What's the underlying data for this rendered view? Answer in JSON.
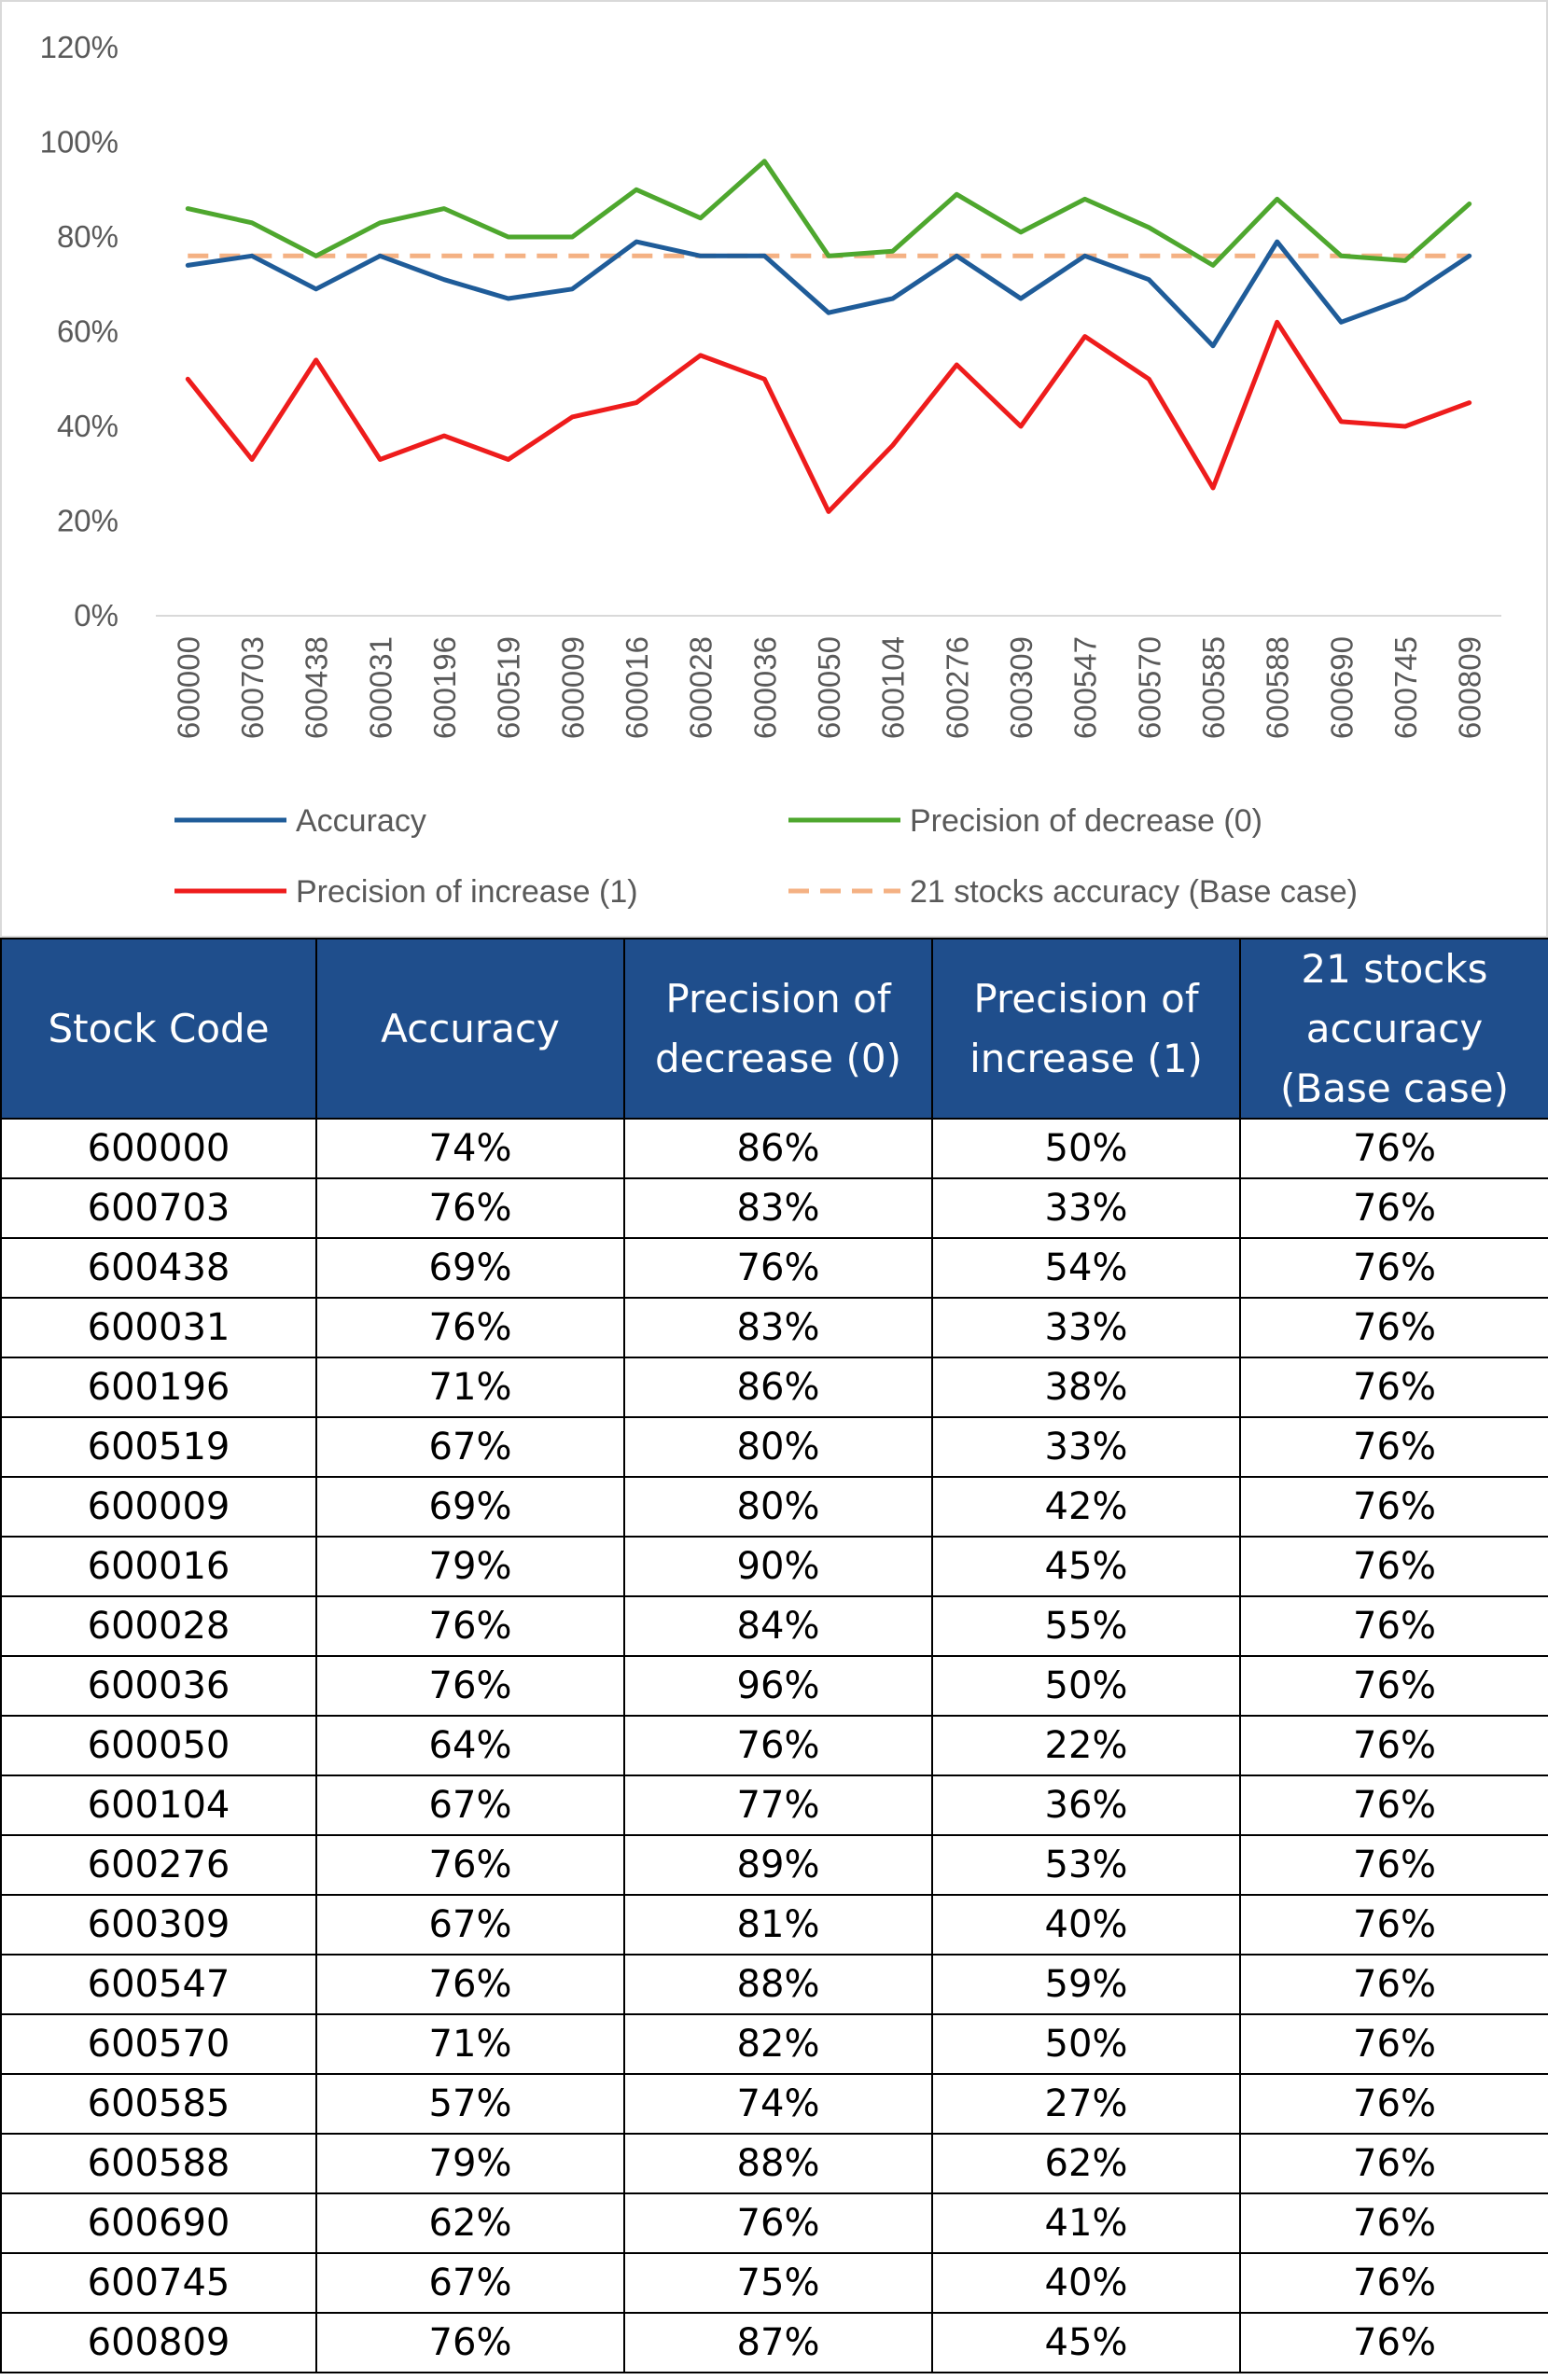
{
  "chart_data": {
    "type": "line",
    "categories": [
      "600000",
      "600703",
      "600438",
      "600031",
      "600196",
      "600519",
      "600009",
      "600016",
      "600028",
      "600036",
      "600050",
      "600104",
      "600276",
      "600309",
      "600547",
      "600570",
      "600585",
      "600588",
      "600690",
      "600745",
      "600809"
    ],
    "y_ticks": [
      "0%",
      "20%",
      "40%",
      "60%",
      "80%",
      "100%",
      "120%"
    ],
    "ylim": [
      0,
      120
    ],
    "title": "",
    "xlabel": "",
    "ylabel": "",
    "legend_position": "bottom",
    "series": [
      {
        "name": "Accuracy",
        "color": "#1f5c99",
        "style": "solid",
        "values": [
          74,
          76,
          69,
          76,
          71,
          67,
          69,
          79,
          76,
          76,
          64,
          67,
          76,
          67,
          76,
          71,
          57,
          79,
          62,
          67,
          76
        ]
      },
      {
        "name": "Precision of decrease (0)",
        "color": "#4ea72e",
        "style": "solid",
        "values": [
          86,
          83,
          76,
          83,
          86,
          80,
          80,
          90,
          84,
          96,
          76,
          77,
          89,
          81,
          88,
          82,
          74,
          88,
          76,
          75,
          87
        ]
      },
      {
        "name": "Precision of increase (1)",
        "color": "#ee1c1c",
        "style": "solid",
        "values": [
          50,
          33,
          54,
          33,
          38,
          33,
          42,
          45,
          55,
          50,
          22,
          36,
          53,
          40,
          59,
          50,
          27,
          62,
          41,
          40,
          45
        ]
      },
      {
        "name": "21 stocks accuracy (Base case)",
        "color": "#f4b183",
        "style": "dashed",
        "values": [
          76,
          76,
          76,
          76,
          76,
          76,
          76,
          76,
          76,
          76,
          76,
          76,
          76,
          76,
          76,
          76,
          76,
          76,
          76,
          76,
          76
        ]
      }
    ]
  },
  "table": {
    "headers": [
      "Stock Code",
      "Accuracy",
      "Precision of decrease (0)",
      "Precision of increase (1)",
      "21 stocks accuracy (Base case)"
    ],
    "rows": [
      [
        "600000",
        "74%",
        "86%",
        "50%",
        "76%"
      ],
      [
        "600703",
        "76%",
        "83%",
        "33%",
        "76%"
      ],
      [
        "600438",
        "69%",
        "76%",
        "54%",
        "76%"
      ],
      [
        "600031",
        "76%",
        "83%",
        "33%",
        "76%"
      ],
      [
        "600196",
        "71%",
        "86%",
        "38%",
        "76%"
      ],
      [
        "600519",
        "67%",
        "80%",
        "33%",
        "76%"
      ],
      [
        "600009",
        "69%",
        "80%",
        "42%",
        "76%"
      ],
      [
        "600016",
        "79%",
        "90%",
        "45%",
        "76%"
      ],
      [
        "600028",
        "76%",
        "84%",
        "55%",
        "76%"
      ],
      [
        "600036",
        "76%",
        "96%",
        "50%",
        "76%"
      ],
      [
        "600050",
        "64%",
        "76%",
        "22%",
        "76%"
      ],
      [
        "600104",
        "67%",
        "77%",
        "36%",
        "76%"
      ],
      [
        "600276",
        "76%",
        "89%",
        "53%",
        "76%"
      ],
      [
        "600309",
        "67%",
        "81%",
        "40%",
        "76%"
      ],
      [
        "600547",
        "76%",
        "88%",
        "59%",
        "76%"
      ],
      [
        "600570",
        "71%",
        "82%",
        "50%",
        "76%"
      ],
      [
        "600585",
        "57%",
        "74%",
        "27%",
        "76%"
      ],
      [
        "600588",
        "79%",
        "88%",
        "62%",
        "76%"
      ],
      [
        "600690",
        "62%",
        "76%",
        "41%",
        "76%"
      ],
      [
        "600745",
        "67%",
        "75%",
        "40%",
        "76%"
      ],
      [
        "600809",
        "76%",
        "87%",
        "45%",
        "76%"
      ]
    ]
  }
}
